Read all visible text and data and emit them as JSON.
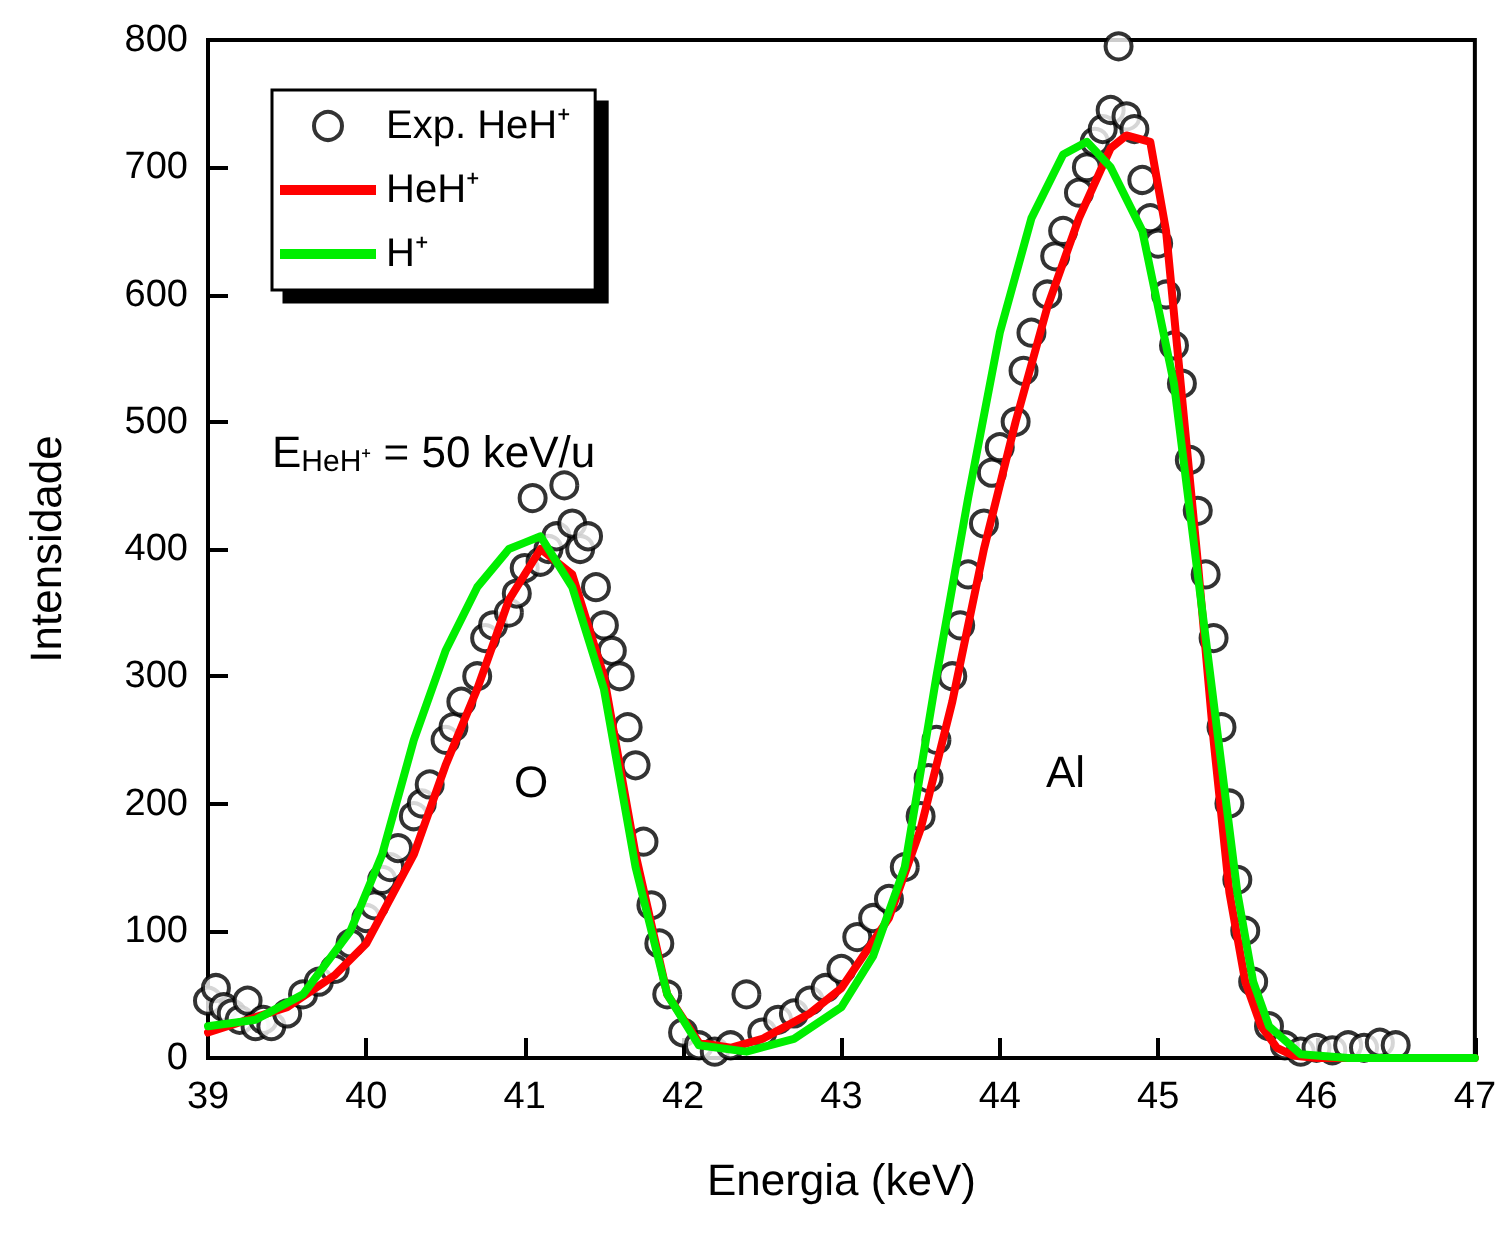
{
  "chart_data": {
    "type": "scatter",
    "xlabel": "Energia (keV)",
    "ylabel": "Intensidade",
    "xlim": [
      39,
      47
    ],
    "xticks": [
      39,
      40,
      41,
      42,
      43,
      44,
      45,
      46,
      47
    ],
    "ylim": [
      0,
      800
    ],
    "yticks": [
      0,
      100,
      200,
      300,
      400,
      500,
      600,
      700,
      800
    ],
    "grid": false,
    "legend": "top left",
    "marker": "circle",
    "annotations": [
      "E$_{HeH⁺}$ = 50 keV/u",
      "O",
      "Al"
    ],
    "series": [
      {
        "name": "Exp. HeH⁺",
        "color": "#000000",
        "x": [
          39.0,
          39.05,
          39.1,
          39.15,
          39.2,
          39.25,
          39.3,
          39.35,
          39.4,
          39.5,
          39.6,
          39.7,
          39.8,
          39.9,
          40.0,
          40.05,
          40.1,
          40.15,
          40.2,
          40.3,
          40.35,
          40.4,
          40.5,
          40.55,
          40.6,
          40.7,
          40.75,
          40.8,
          40.9,
          40.95,
          41.0,
          41.05,
          41.1,
          41.15,
          41.2,
          41.25,
          41.3,
          41.35,
          41.4,
          41.45,
          41.5,
          41.55,
          41.6,
          41.65,
          41.7,
          41.75,
          41.8,
          41.85,
          41.9,
          42.0,
          42.1,
          42.2,
          42.3,
          42.4,
          42.5,
          42.6,
          42.7,
          42.8,
          42.9,
          43.0,
          43.1,
          43.2,
          43.3,
          43.4,
          43.5,
          43.55,
          43.6,
          43.7,
          43.75,
          43.8,
          43.9,
          43.95,
          44.0,
          44.1,
          44.15,
          44.2,
          44.3,
          44.35,
          44.4,
          44.5,
          44.55,
          44.6,
          44.65,
          44.7,
          44.75,
          44.8,
          44.85,
          44.9,
          44.95,
          45.0,
          45.05,
          45.1,
          45.15,
          45.2,
          45.25,
          45.3,
          45.35,
          45.4,
          45.45,
          45.5,
          45.55,
          45.6,
          45.7,
          45.8,
          45.9,
          46.0,
          46.1,
          46.2,
          46.3,
          46.4,
          46.5
        ],
        "values": [
          45,
          55,
          40,
          35,
          30,
          45,
          25,
          30,
          25,
          35,
          50,
          60,
          70,
          90,
          110,
          120,
          140,
          150,
          165,
          190,
          200,
          215,
          250,
          260,
          280,
          300,
          330,
          340,
          350,
          365,
          385,
          440,
          390,
          400,
          410,
          450,
          420,
          400,
          410,
          370,
          340,
          320,
          300,
          260,
          230,
          170,
          120,
          90,
          50,
          20,
          10,
          5,
          10,
          50,
          20,
          30,
          35,
          45,
          55,
          70,
          95,
          110,
          125,
          150,
          190,
          220,
          250,
          300,
          340,
          380,
          420,
          460,
          480,
          500,
          540,
          570,
          600,
          630,
          650,
          680,
          700,
          720,
          730,
          745,
          795,
          740,
          730,
          690,
          660,
          640,
          600,
          560,
          530,
          470,
          430,
          380,
          330,
          260,
          200,
          140,
          100,
          60,
          25,
          10,
          5,
          8,
          6,
          10,
          8,
          12,
          10
        ]
      },
      {
        "name": "HeH⁺",
        "type": "line",
        "color": "#ff0000",
        "marker": "none",
        "x": [
          39.0,
          39.5,
          39.8,
          40.0,
          40.3,
          40.5,
          40.7,
          40.9,
          41.1,
          41.3,
          41.5,
          41.7,
          41.9,
          42.1,
          42.3,
          42.5,
          42.8,
          43.0,
          43.3,
          43.5,
          43.7,
          43.9,
          44.1,
          44.3,
          44.5,
          44.7,
          44.8,
          44.95,
          45.05,
          45.15,
          45.25,
          45.35,
          45.45,
          45.55,
          45.65,
          45.75,
          45.85,
          46.0,
          47.0
        ],
        "values": [
          20,
          40,
          65,
          90,
          160,
          230,
          290,
          360,
          400,
          380,
          300,
          160,
          50,
          12,
          8,
          15,
          35,
          55,
          110,
          180,
          280,
          400,
          500,
          590,
          660,
          715,
          725,
          720,
          650,
          520,
          390,
          250,
          130,
          60,
          25,
          8,
          2,
          0,
          0
        ]
      },
      {
        "name": "H⁺",
        "type": "line",
        "color": "#00ee00",
        "marker": "none",
        "x": [
          39.0,
          39.3,
          39.6,
          39.9,
          40.1,
          40.3,
          40.5,
          40.7,
          40.9,
          41.0,
          41.1,
          41.3,
          41.5,
          41.7,
          41.9,
          42.1,
          42.4,
          42.7,
          43.0,
          43.2,
          43.4,
          43.6,
          43.8,
          44.0,
          44.2,
          44.4,
          44.55,
          44.7,
          44.9,
          45.1,
          45.3,
          45.5,
          45.6,
          45.7,
          45.9,
          46.2,
          47.0
        ],
        "values": [
          25,
          30,
          50,
          100,
          160,
          250,
          320,
          370,
          400,
          405,
          410,
          370,
          290,
          150,
          50,
          10,
          5,
          15,
          40,
          80,
          150,
          300,
          440,
          570,
          660,
          710,
          720,
          700,
          650,
          530,
          330,
          130,
          60,
          25,
          3,
          0,
          0
        ]
      }
    ]
  }
}
